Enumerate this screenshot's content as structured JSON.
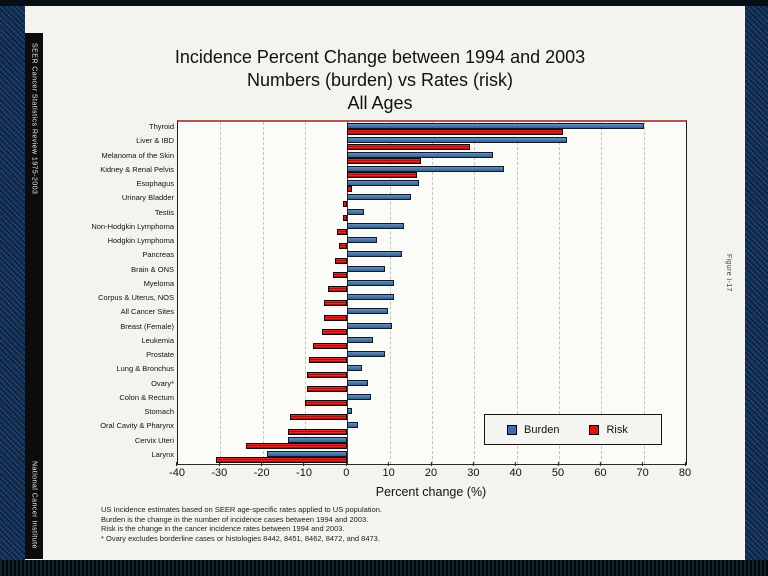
{
  "sidebar": {
    "title": "SEER Cancer Statistics Review 1975-2003",
    "institute": "National Cancer Institute"
  },
  "figure_label": "Figure I-17",
  "title_lines": [
    "Incidence Percent Change between 1994 and 2003",
    "Numbers (burden) vs Rates (risk)",
    "All Ages"
  ],
  "chart_data": {
    "type": "bar",
    "orientation": "horizontal",
    "title": "Incidence Percent Change between 1994 and 2003 — Numbers (burden) vs Rates (risk) — All Ages",
    "xlabel": "Percent change (%)",
    "xlim": [
      -40,
      80
    ],
    "xticks": [
      -40,
      -30,
      -20,
      -10,
      0,
      10,
      20,
      30,
      40,
      50,
      60,
      70,
      80
    ],
    "grid": "vertical-dashed-every-10",
    "legend_position": "inside-lower-right",
    "categories": [
      "Thyroid",
      "Liver & IBD",
      "Melanoma of the Skin",
      "Kidney & Renal Pelvis",
      "Esophagus",
      "Urinary Bladder",
      "Testis",
      "Non-Hodgkin Lymphoma",
      "Hodgkin Lymphoma",
      "Pancreas",
      "Brain & ONS",
      "Myeloma",
      "Corpus & Uterus, NOS",
      "All Cancer Sites",
      "Breast (Female)",
      "Leukemia",
      "Prostate",
      "Lung & Bronchus",
      "Ovary*",
      "Colon & Rectum",
      "Stomach",
      "Oral Cavity & Pharynx",
      "Cervix Uteri",
      "Larynx"
    ],
    "series": [
      {
        "name": "Burden",
        "color": "#3a6fa6",
        "values": [
          70,
          52,
          34.5,
          37,
          17,
          15,
          4,
          13.5,
          7,
          13,
          9,
          11,
          11,
          9.5,
          10.5,
          6,
          9,
          3.5,
          5,
          5.5,
          1,
          2.5,
          -14,
          -19
        ]
      },
      {
        "name": "Risk",
        "color": "#e01212",
        "values": [
          51,
          29,
          17.5,
          16.5,
          1,
          -1,
          -1,
          -2.5,
          -2,
          -3,
          -3.5,
          -4.5,
          -5.5,
          -5.5,
          -6,
          -8,
          -9,
          -9.5,
          -9.5,
          -10,
          -13.5,
          -14,
          -24,
          -31
        ]
      }
    ]
  },
  "footnotes": [
    "US Incidence estimates based on SEER age-specific rates applied to US population.",
    "Burden is the change in the number of incidence cases between 1994 and 2003.",
    "Risk is the change in the cancer incidence rates between 1994 and 2003.",
    "* Ovary excludes borderline cases or histologies 8442, 8451, 8462, 8472, and 8473."
  ]
}
